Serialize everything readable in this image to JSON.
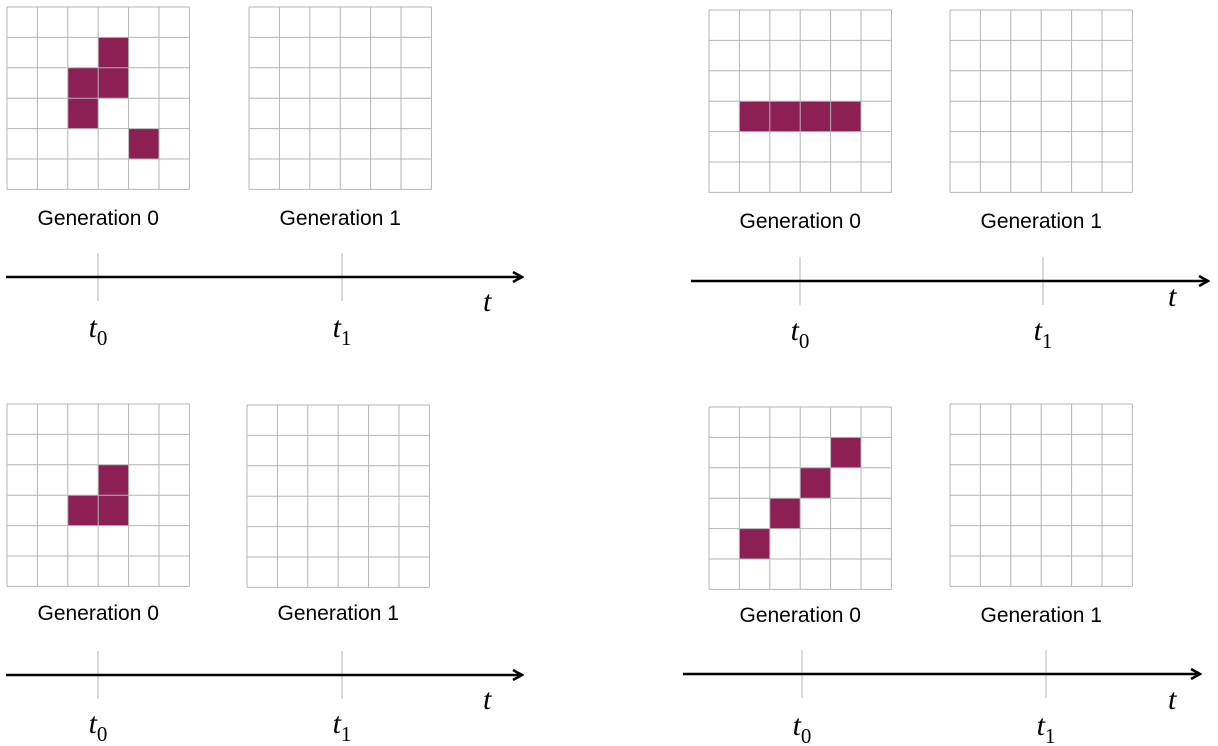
{
  "colors": {
    "cell_on": "#8c2055",
    "grid_line": "#b4b4b4",
    "axis": "#000000"
  },
  "grid_size": [
    6,
    6
  ],
  "panels": [
    {
      "gen0_label": "Generation 0",
      "gen1_label": "Generation 1",
      "axis_label": "t",
      "t0": {
        "base": "t",
        "sub": "0"
      },
      "t1": {
        "base": "t",
        "sub": "1"
      },
      "gen0_live_cells": [
        [
          1,
          3
        ],
        [
          2,
          2
        ],
        [
          2,
          3
        ],
        [
          3,
          2
        ],
        [
          4,
          4
        ]
      ]
    },
    {
      "gen0_label": "Generation 0",
      "gen1_label": "Generation 1",
      "axis_label": "t",
      "t0": {
        "base": "t",
        "sub": "0"
      },
      "t1": {
        "base": "t",
        "sub": "1"
      },
      "gen0_live_cells": [
        [
          3,
          1
        ],
        [
          3,
          2
        ],
        [
          3,
          3
        ],
        [
          3,
          4
        ]
      ]
    },
    {
      "gen0_label": "Generation 0",
      "gen1_label": "Generation 1",
      "axis_label": "t",
      "t0": {
        "base": "t",
        "sub": "0"
      },
      "t1": {
        "base": "t",
        "sub": "1"
      },
      "gen0_live_cells": [
        [
          2,
          3
        ],
        [
          3,
          2
        ],
        [
          3,
          3
        ]
      ]
    },
    {
      "gen0_label": "Generation 0",
      "gen1_label": "Generation 1",
      "axis_label": "t",
      "t0": {
        "base": "t",
        "sub": "0"
      },
      "t1": {
        "base": "t",
        "sub": "1"
      },
      "gen0_live_cells": [
        [
          1,
          4
        ],
        [
          2,
          3
        ],
        [
          3,
          2
        ],
        [
          4,
          1
        ]
      ]
    }
  ]
}
